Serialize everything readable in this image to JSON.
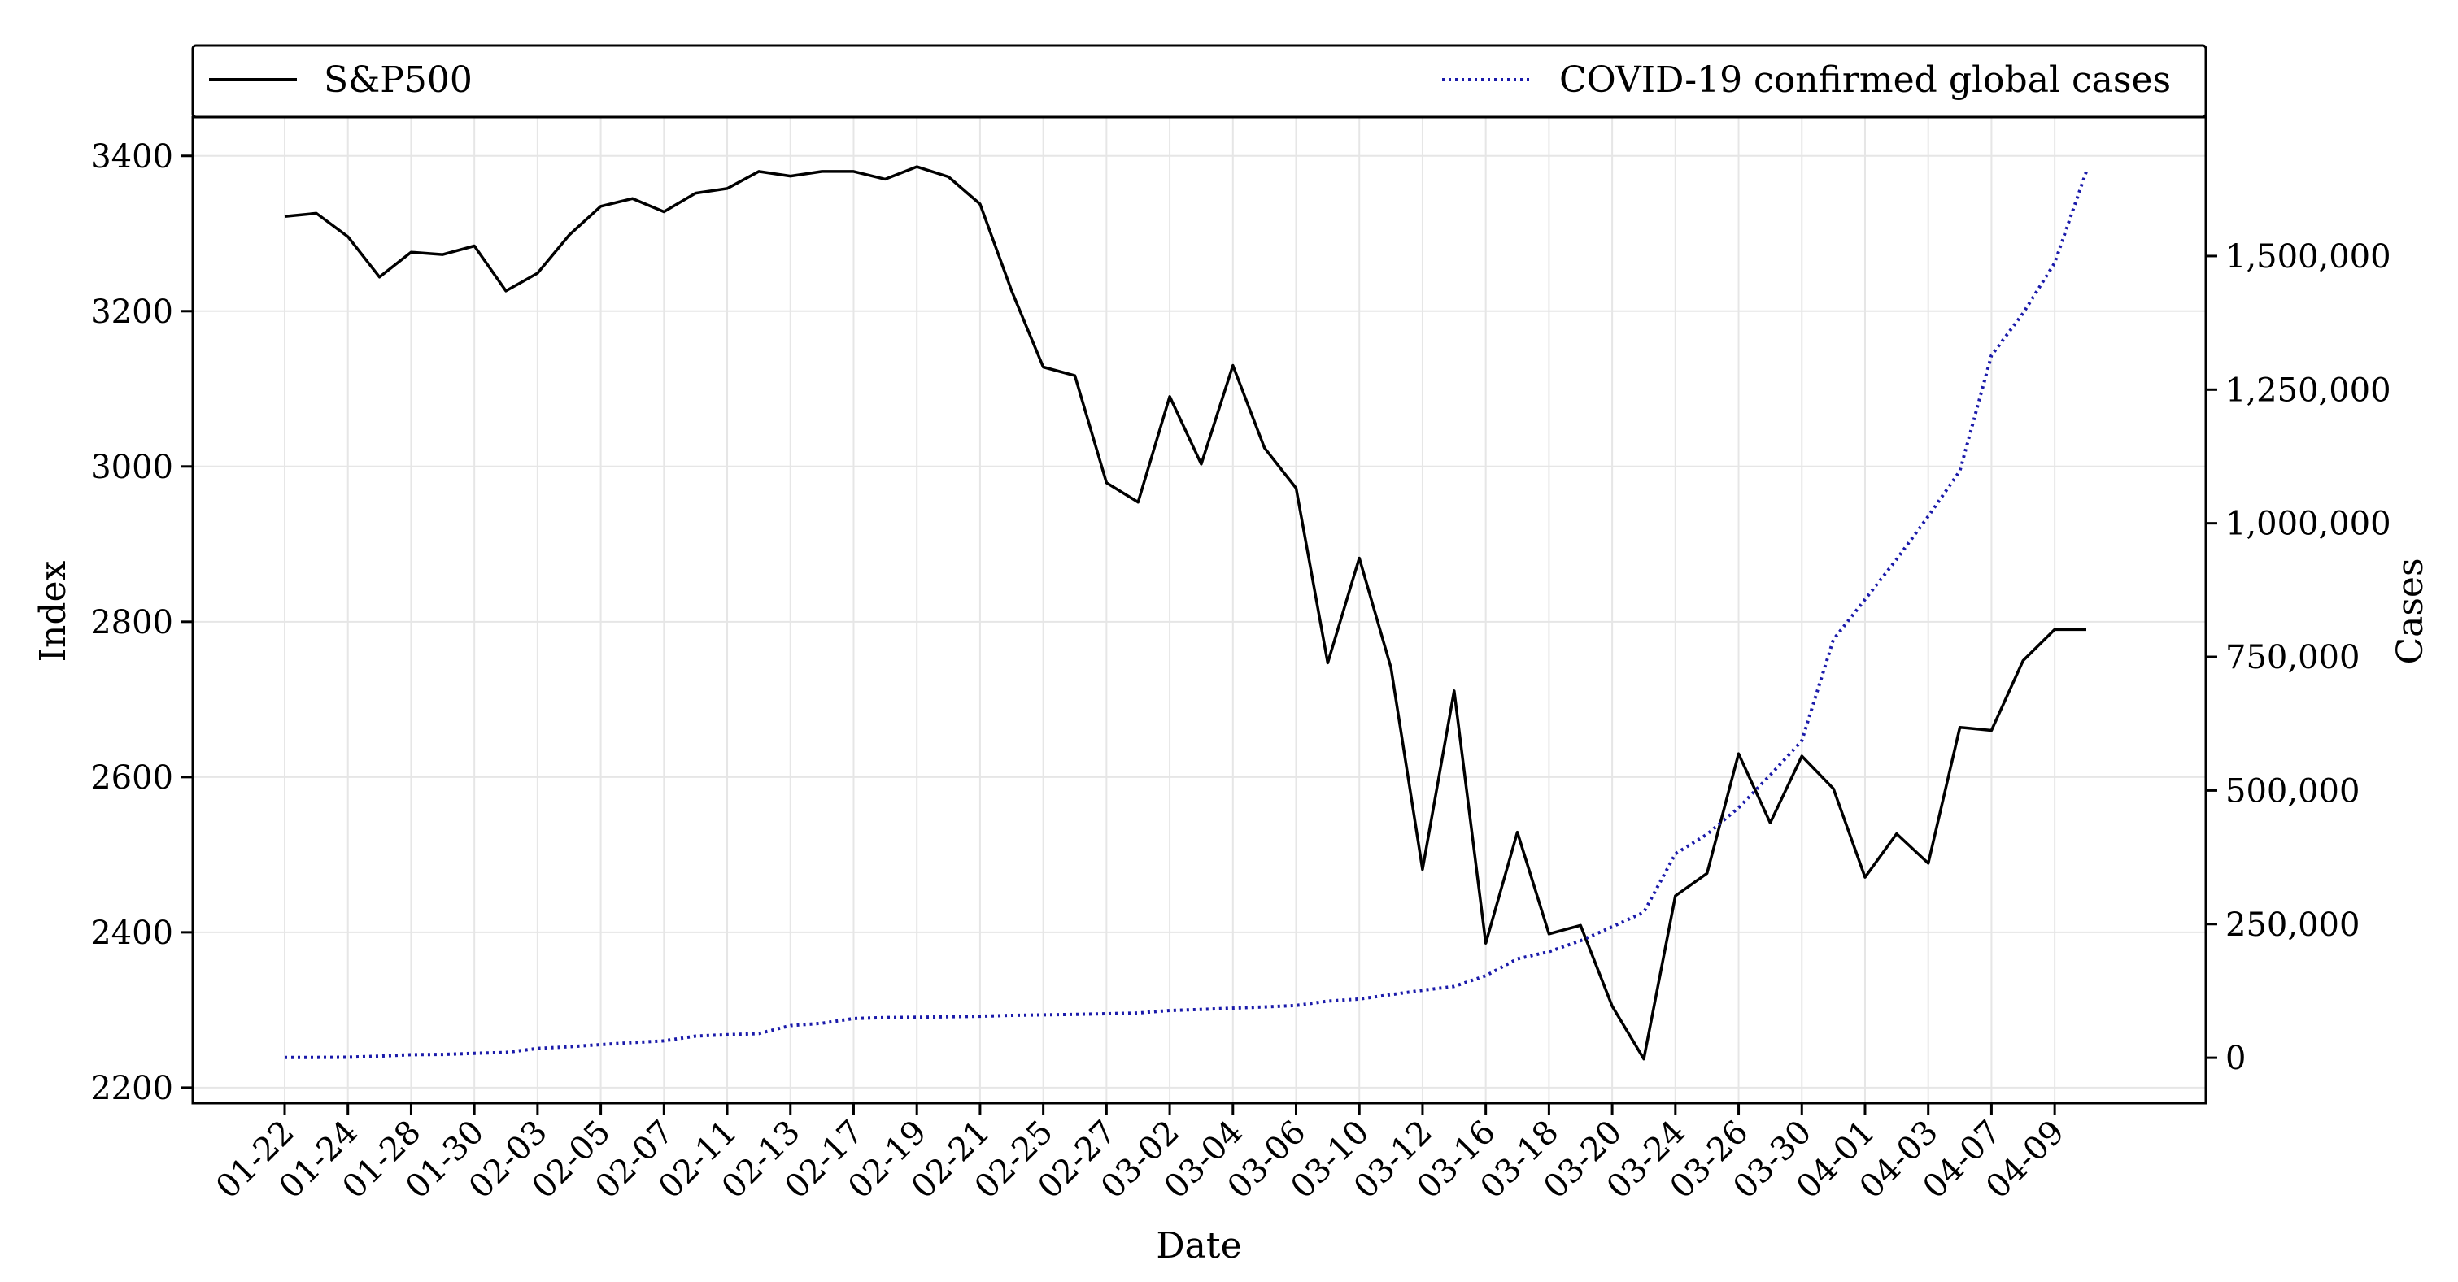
{
  "chart_data": {
    "type": "line",
    "title": "",
    "xlabel": "Date",
    "ylabel_left": "Index",
    "ylabel_right": "Cases",
    "legend_placement": "top",
    "grid": true,
    "x": [
      "01-22",
      "01-23",
      "01-24",
      "01-27",
      "01-28",
      "01-29",
      "01-30",
      "01-31",
      "02-03",
      "02-04",
      "02-05",
      "02-06",
      "02-07",
      "02-10",
      "02-11",
      "02-12",
      "02-13",
      "02-14",
      "02-17",
      "02-18",
      "02-19",
      "02-20",
      "02-21",
      "02-24",
      "02-25",
      "02-26",
      "02-27",
      "02-28",
      "03-02",
      "03-03",
      "03-04",
      "03-05",
      "03-06",
      "03-09",
      "03-10",
      "03-11",
      "03-12",
      "03-13",
      "03-16",
      "03-17",
      "03-18",
      "03-19",
      "03-20",
      "03-23",
      "03-24",
      "03-25",
      "03-26",
      "03-27",
      "03-30",
      "03-31",
      "04-01",
      "04-02",
      "04-03",
      "04-06",
      "04-07",
      "04-08",
      "04-09",
      "04-10"
    ],
    "x_tick_labels": [
      "01-22",
      "01-24",
      "01-28",
      "01-30",
      "02-03",
      "02-05",
      "02-07",
      "02-11",
      "02-13",
      "02-17",
      "02-19",
      "02-21",
      "02-25",
      "02-27",
      "03-02",
      "03-04",
      "03-06",
      "03-10",
      "03-12",
      "03-16",
      "03-18",
      "03-20",
      "03-24",
      "03-26",
      "03-30",
      "04-01",
      "04-03",
      "04-07",
      "04-09"
    ],
    "y_left": {
      "range": [
        2180,
        3450
      ],
      "ticks": [
        2200,
        2400,
        2600,
        2800,
        3000,
        3200,
        3400
      ],
      "tick_labels": [
        "2200",
        "2400",
        "2600",
        "2800",
        "3000",
        "3200",
        "3400"
      ]
    },
    "y_right": {
      "range": [
        -85000,
        1760000
      ],
      "ticks": [
        0,
        250000,
        500000,
        750000,
        1000000,
        1250000,
        1500000
      ],
      "tick_labels": [
        "0",
        "250,000",
        "500,000",
        "750,000",
        "1,000,000",
        "1,250,000",
        "1,500,000"
      ]
    },
    "series": [
      {
        "name": "S&P500",
        "axis": "left",
        "style": "solid",
        "color": "#000000",
        "values": [
          3322,
          3326,
          3296,
          3244,
          3276,
          3273,
          3284,
          3226,
          3249,
          3298,
          3335,
          3345,
          3328,
          3352,
          3358,
          3380,
          3374,
          3380,
          3380,
          3370,
          3386,
          3373,
          3338,
          3226,
          3128,
          3117,
          2979,
          2954,
          3090,
          3003,
          3130,
          3024,
          2972,
          2747,
          2882,
          2741,
          2481,
          2711,
          2386,
          2529,
          2398,
          2409,
          2305,
          2237,
          2447,
          2476,
          2630,
          2541,
          2627,
          2585,
          2471,
          2527,
          2489,
          2664,
          2660,
          2750,
          2790,
          2790
        ]
      },
      {
        "name": "COVID-19 confirmed global cases",
        "axis": "right",
        "style": "dotted",
        "color": "#1a1aaa",
        "values": [
          555,
          654,
          941,
          2927,
          5578,
          6166,
          8234,
          9927,
          17391,
          20630,
          24554,
          28276,
          31481,
          40553,
          43105,
          45171,
          60092,
          64543,
          73332,
          75184,
          75700,
          76677,
          77673,
          79331,
          80239,
          81109,
          82294,
          83652,
          88369,
          90306,
          92840,
          95120,
          97886,
          105836,
          109835,
          118020,
          126136,
          133460,
          153550,
          184976,
          198407,
          218898,
          244902,
          272166,
          381497,
          418039,
          467710,
          528806,
          593252,
          782365,
          857487,
          932605,
          1012998,
          1097996,
          1314000,
          1393000,
          1487000,
          1658000
        ]
      }
    ]
  }
}
